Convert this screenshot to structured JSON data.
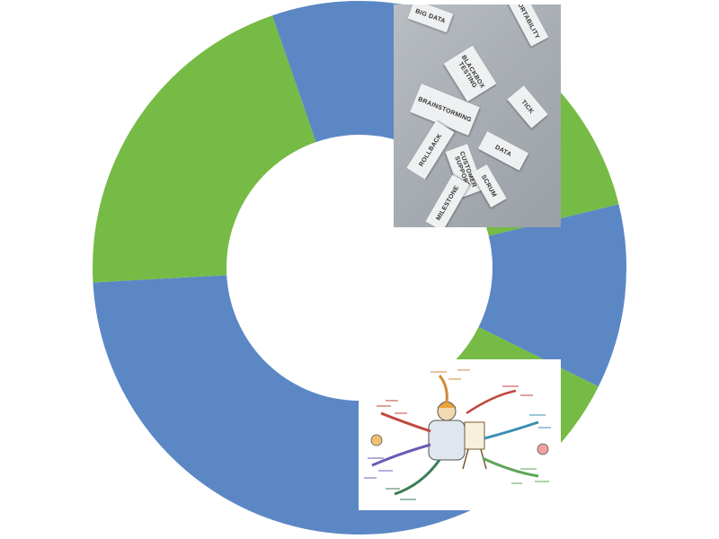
{
  "chart_data": {
    "type": "donut",
    "title": "",
    "slices": [
      {
        "value": 11.5,
        "color": "#5b87c5"
      },
      {
        "value": 6.5,
        "color": "#76bb45"
      },
      {
        "value": 9.5,
        "color": "#5b87c5"
      },
      {
        "value": 7.5,
        "color": "#76bb45"
      },
      {
        "value": 28,
        "color": "#5b87c5"
      },
      {
        "value": 17.5,
        "color": "#76bb45"
      },
      {
        "value": 4.5,
        "color": "#5b87c5"
      }
    ],
    "start_angle_deg": 0,
    "colors": {
      "series_blue": "#5b87c5",
      "series_green": "#76bb45"
    }
  },
  "images": {
    "top_photo": {
      "description_icon": "photo-icon",
      "card_words": [
        "BIG DATA",
        "BLACKBOX TESTING",
        "BRAINSTORMING",
        "ROLLBACK",
        "CUSTOMER SUPPORT",
        "SCRUM",
        "MILESTONE",
        "TICK",
        "DATA",
        "PORTABILITY"
      ]
    },
    "bottom_illustration": {
      "description_icon": "mindmap-illustration-icon"
    }
  }
}
